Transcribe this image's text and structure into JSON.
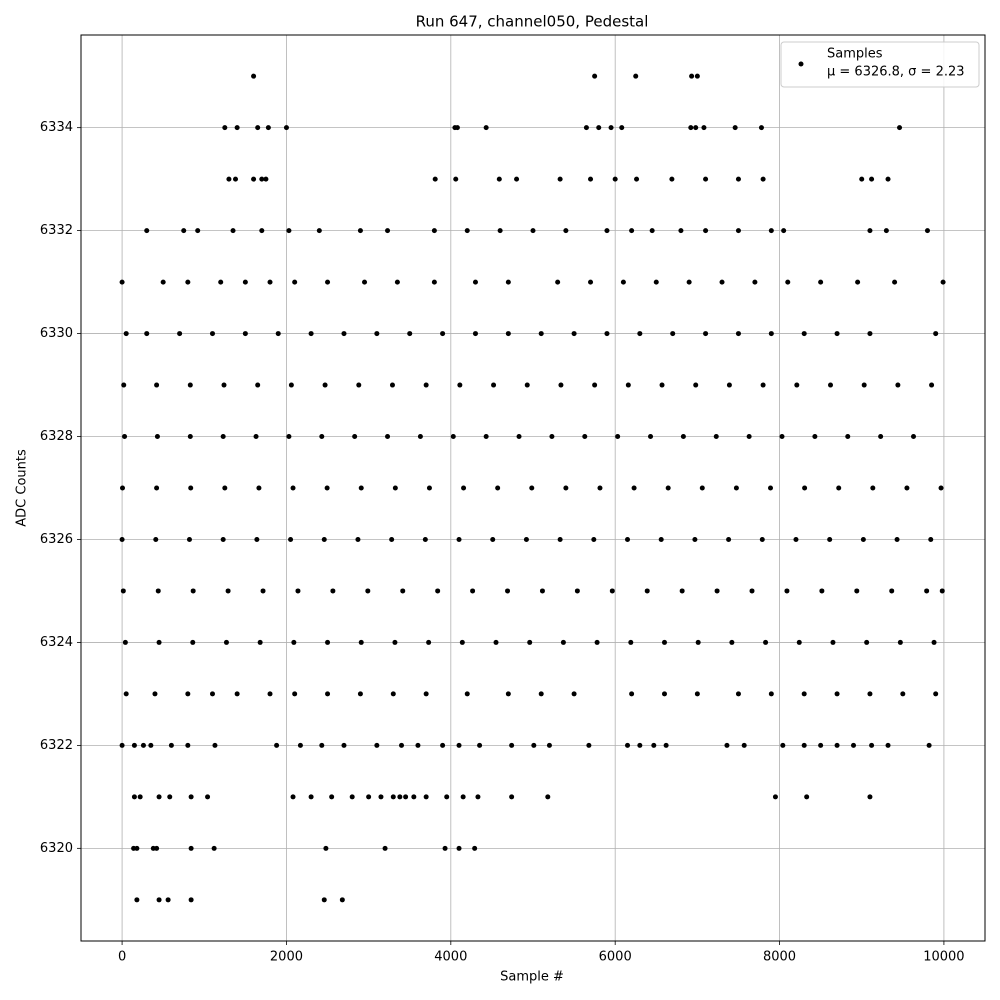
{
  "chart_data": {
    "type": "scatter",
    "title": "Run 647, channel050, Pedestal",
    "x_label": "Sample #",
    "y_label": "ADC Counts",
    "xlim": [
      -500,
      10500
    ],
    "ylim": [
      6318.2,
      6335.8
    ],
    "xticks": [
      0,
      2000,
      4000,
      6000,
      8000,
      10000
    ],
    "yticks": [
      6320,
      6322,
      6324,
      6326,
      6328,
      6330,
      6332,
      6334
    ],
    "grid": true,
    "legend": "upper right",
    "legend_note": "μ = 6326.8, σ = 2.23",
    "series": [
      {
        "name": "Samples",
        "color": "#000000",
        "x": [
          1600,
          5750,
          6250,
          6930,
          7000,
          1250,
          1400,
          1650,
          1780,
          2000,
          4050,
          4080,
          4430,
          5650,
          5800,
          5950,
          6080,
          6920,
          6980,
          7080,
          7460,
          7780,
          9460,
          1300,
          1380,
          1600,
          1700,
          1750,
          3810,
          4060,
          4590,
          4800,
          5330,
          5700,
          6000,
          6260,
          6690,
          7100,
          7500,
          7800,
          9000,
          9120,
          9320,
          300,
          750,
          920,
          1350,
          1700,
          2030,
          2400,
          2900,
          3230,
          3800,
          4200,
          4600,
          5000,
          5400,
          5900,
          6200,
          6450,
          6800,
          7100,
          7500,
          7900,
          8050,
          9100,
          9300,
          9800,
          0,
          500,
          800,
          1200,
          1500,
          1800,
          2100,
          2500,
          2950,
          3350,
          3800,
          4300,
          4700,
          5300,
          5700,
          6100,
          6500,
          6900,
          7300,
          7700,
          8100,
          8500,
          8950,
          9400,
          9990,
          50,
          300,
          700,
          1100,
          1500,
          1900,
          2300,
          2700,
          3100,
          3500,
          3900,
          4300,
          4700,
          5100,
          5500,
          5900,
          6300,
          6700,
          7100,
          7500,
          7900,
          8300,
          8700,
          9100,
          9900,
          20,
          420,
          830,
          1240,
          1650,
          2060,
          2470,
          2880,
          3290,
          3700,
          4110,
          4520,
          4930,
          5340,
          5750,
          6160,
          6570,
          6980,
          7390,
          7800,
          8210,
          8620,
          9030,
          9440,
          9850,
          30,
          430,
          830,
          1230,
          1630,
          2030,
          2430,
          2830,
          3230,
          3630,
          4030,
          4430,
          4830,
          5230,
          5630,
          6030,
          6430,
          6830,
          7230,
          7630,
          8030,
          8430,
          8830,
          9230,
          9630,
          5,
          420,
          835,
          1250,
          1665,
          2080,
          2495,
          2910,
          3325,
          3740,
          4155,
          4570,
          4985,
          5400,
          5815,
          6230,
          6645,
          7060,
          7475,
          7890,
          8305,
          8720,
          9135,
          9550,
          9965,
          0,
          410,
          820,
          1230,
          1640,
          2050,
          2460,
          2870,
          3280,
          3690,
          4100,
          4510,
          4920,
          5330,
          5740,
          6150,
          6560,
          6970,
          7380,
          7790,
          8200,
          8610,
          9020,
          9430,
          9840,
          15,
          440,
          865,
          1290,
          1715,
          2140,
          2565,
          2990,
          3415,
          3840,
          4265,
          4690,
          5115,
          5540,
          5965,
          6390,
          6815,
          7240,
          7665,
          8090,
          8515,
          8940,
          9365,
          9790,
          9980,
          40,
          450,
          860,
          1270,
          1680,
          2090,
          2500,
          2910,
          3320,
          3730,
          4140,
          4550,
          4960,
          5370,
          5780,
          6190,
          6600,
          7010,
          7420,
          7830,
          8240,
          8650,
          9060,
          9470,
          9880,
          50,
          400,
          800,
          1100,
          1400,
          1800,
          2100,
          2500,
          2900,
          3300,
          3700,
          4200,
          4700,
          5100,
          5500,
          6200,
          6600,
          7000,
          7500,
          7900,
          8300,
          8700,
          9100,
          9500,
          9900,
          0,
          150,
          350,
          600,
          800,
          1130,
          1880,
          2170,
          2430,
          2700,
          3100,
          3400,
          3600,
          3900,
          4100,
          4350,
          4740,
          5010,
          5200,
          5680,
          6150,
          6300,
          6470,
          6620,
          7360,
          7570,
          8040,
          8300,
          8500,
          8700,
          8900,
          9120,
          9320,
          9820,
          260,
          150,
          220,
          450,
          580,
          840,
          1040,
          2080,
          2300,
          2550,
          2800,
          3000,
          3300,
          3450,
          3700,
          3950,
          4150,
          4330,
          4740,
          5180,
          7950,
          8330,
          9100,
          3150,
          3550,
          3380,
          140,
          180,
          380,
          420,
          840,
          1120,
          2480,
          3200,
          3930,
          4100,
          4290,
          180,
          450,
          560,
          840,
          2460,
          2680
        ],
        "y": [
          6335,
          6335,
          6335,
          6335,
          6335,
          6334,
          6334,
          6334,
          6334,
          6334,
          6334,
          6334,
          6334,
          6334,
          6334,
          6334,
          6334,
          6334,
          6334,
          6334,
          6334,
          6334,
          6334,
          6333,
          6333,
          6333,
          6333,
          6333,
          6333,
          6333,
          6333,
          6333,
          6333,
          6333,
          6333,
          6333,
          6333,
          6333,
          6333,
          6333,
          6333,
          6333,
          6333,
          6332,
          6332,
          6332,
          6332,
          6332,
          6332,
          6332,
          6332,
          6332,
          6332,
          6332,
          6332,
          6332,
          6332,
          6332,
          6332,
          6332,
          6332,
          6332,
          6332,
          6332,
          6332,
          6332,
          6332,
          6332,
          6331,
          6331,
          6331,
          6331,
          6331,
          6331,
          6331,
          6331,
          6331,
          6331,
          6331,
          6331,
          6331,
          6331,
          6331,
          6331,
          6331,
          6331,
          6331,
          6331,
          6331,
          6331,
          6331,
          6331,
          6331,
          6330,
          6330,
          6330,
          6330,
          6330,
          6330,
          6330,
          6330,
          6330,
          6330,
          6330,
          6330,
          6330,
          6330,
          6330,
          6330,
          6330,
          6330,
          6330,
          6330,
          6330,
          6330,
          6330,
          6330,
          6330,
          6329,
          6329,
          6329,
          6329,
          6329,
          6329,
          6329,
          6329,
          6329,
          6329,
          6329,
          6329,
          6329,
          6329,
          6329,
          6329,
          6329,
          6329,
          6329,
          6329,
          6329,
          6329,
          6329,
          6329,
          6329,
          6328,
          6328,
          6328,
          6328,
          6328,
          6328,
          6328,
          6328,
          6328,
          6328,
          6328,
          6328,
          6328,
          6328,
          6328,
          6328,
          6328,
          6328,
          6328,
          6328,
          6328,
          6328,
          6328,
          6328,
          6328,
          6327,
          6327,
          6327,
          6327,
          6327,
          6327,
          6327,
          6327,
          6327,
          6327,
          6327,
          6327,
          6327,
          6327,
          6327,
          6327,
          6327,
          6327,
          6327,
          6327,
          6327,
          6327,
          6327,
          6327,
          6327,
          6326,
          6326,
          6326,
          6326,
          6326,
          6326,
          6326,
          6326,
          6326,
          6326,
          6326,
          6326,
          6326,
          6326,
          6326,
          6326,
          6326,
          6326,
          6326,
          6326,
          6326,
          6326,
          6326,
          6326,
          6326,
          6325,
          6325,
          6325,
          6325,
          6325,
          6325,
          6325,
          6325,
          6325,
          6325,
          6325,
          6325,
          6325,
          6325,
          6325,
          6325,
          6325,
          6325,
          6325,
          6325,
          6325,
          6325,
          6325,
          6325,
          6325,
          6324,
          6324,
          6324,
          6324,
          6324,
          6324,
          6324,
          6324,
          6324,
          6324,
          6324,
          6324,
          6324,
          6324,
          6324,
          6324,
          6324,
          6324,
          6324,
          6324,
          6324,
          6324,
          6324,
          6324,
          6324,
          6323,
          6323,
          6323,
          6323,
          6323,
          6323,
          6323,
          6323,
          6323,
          6323,
          6323,
          6323,
          6323,
          6323,
          6323,
          6323,
          6323,
          6323,
          6323,
          6323,
          6323,
          6323,
          6323,
          6323,
          6323,
          6322,
          6322,
          6322,
          6322,
          6322,
          6322,
          6322,
          6322,
          6322,
          6322,
          6322,
          6322,
          6322,
          6322,
          6322,
          6322,
          6322,
          6322,
          6322,
          6322,
          6322,
          6322,
          6322,
          6322,
          6322,
          6322,
          6322,
          6322,
          6322,
          6322,
          6322,
          6322,
          6322,
          6322,
          6322,
          6321,
          6321,
          6321,
          6321,
          6321,
          6321,
          6321,
          6321,
          6321,
          6321,
          6321,
          6321,
          6321,
          6321,
          6321,
          6321,
          6321,
          6321,
          6321,
          6321,
          6321,
          6321,
          6321,
          6321,
          6321,
          6320,
          6320,
          6320,
          6320,
          6320,
          6320,
          6320,
          6320,
          6320,
          6320,
          6320,
          6319,
          6319,
          6319,
          6319,
          6319,
          6319
        ]
      }
    ]
  }
}
